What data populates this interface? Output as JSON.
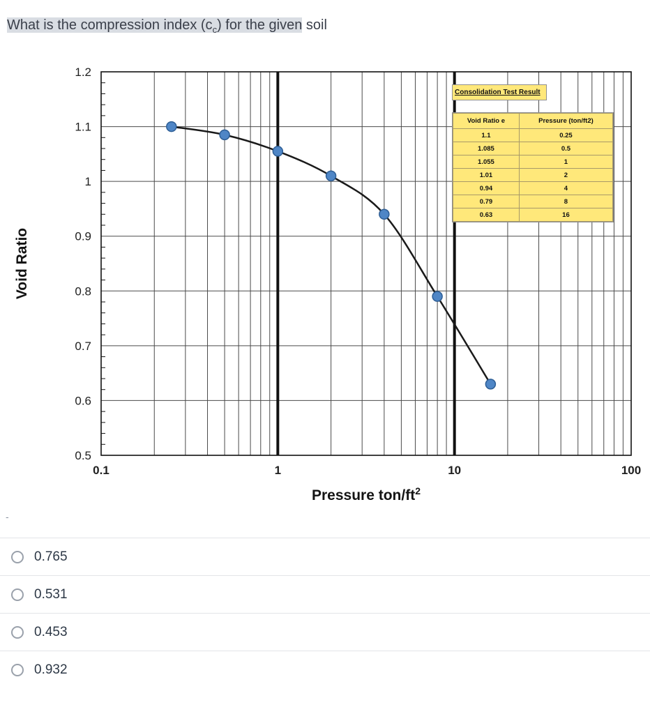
{
  "question": {
    "highlighted_prefix": "What is the compression index (c",
    "subscript": "c",
    "highlighted_suffix": ") for the given",
    "tail": " soil"
  },
  "stray_dash": "-",
  "inset": {
    "title": "Consolidation Test Result",
    "columns": [
      "Void Ratio e",
      "Pressure (ton/ft2)"
    ],
    "rows": [
      [
        "1.1",
        "0.25"
      ],
      [
        "1.085",
        "0.5"
      ],
      [
        "1.055",
        "1"
      ],
      [
        "1.01",
        "2"
      ],
      [
        "0.94",
        "4"
      ],
      [
        "0.79",
        "8"
      ],
      [
        "0.63",
        "16"
      ]
    ]
  },
  "chart_data": {
    "type": "scatter",
    "x": [
      0.25,
      0.5,
      1,
      2,
      4,
      8,
      16
    ],
    "y": [
      1.1,
      1.085,
      1.055,
      1.01,
      0.94,
      0.79,
      0.63
    ],
    "xscale": "log",
    "xlim": [
      0.1,
      100
    ],
    "ylim": [
      0.5,
      1.2
    ],
    "xticks": [
      "0.1",
      "1",
      "10",
      "100"
    ],
    "yticks": [
      1.2,
      1.1,
      1,
      0.9,
      0.8,
      0.7,
      0.6,
      0.5
    ],
    "xlabel": "Pressure ton/ft",
    "xlabel_superscript": "2",
    "ylabel": "Void Ratio",
    "grid": true,
    "legend_position": "upper-right-inset-table",
    "line_color": "#1a1a1a",
    "marker_color": "#4f86c6",
    "marker_edge_color": "#2e5e95",
    "grid_color": "#4a4a4a",
    "major_line_color": "#111111"
  },
  "options": [
    "0.765",
    "0.531",
    "0.453",
    "0.932"
  ]
}
